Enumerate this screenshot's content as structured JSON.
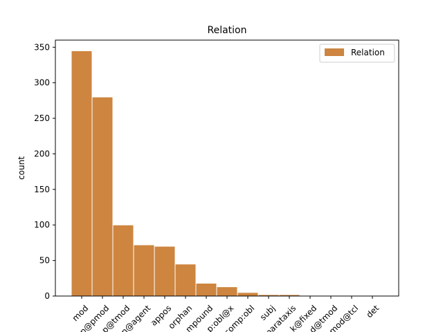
{
  "chart_data": {
    "type": "bar",
    "title": "Relation",
    "xlabel": "",
    "ylabel": "count",
    "ylim": [
      0,
      360
    ],
    "yticks": [
      0,
      50,
      100,
      150,
      200,
      250,
      300,
      350
    ],
    "grid": false,
    "legend_position": "top-right",
    "categories": [
      "mod",
      "comp@pmod",
      "comp@tmod",
      "comp@agent",
      "appos",
      "orphan",
      "compound",
      "comp:obl@x",
      "comp:obl",
      "subj",
      "parataxis",
      "flat@fixed",
      "mod@tmod",
      "mod@tcl",
      "det"
    ],
    "tick_labels": [
      "mod",
      "p@pmod",
      "p@tmod",
      "n@agent",
      "appos",
      "orphan",
      "mpound",
      "p:obl@x",
      "comp:obl",
      "subj",
      "parataxis",
      "k@fixed",
      "d@tmod",
      "mod@tcl",
      "det"
    ],
    "series": [
      {
        "name": "Relation",
        "color": "#cd853f",
        "values": [
          345,
          280,
          100,
          72,
          70,
          45,
          18,
          13,
          5,
          2,
          2,
          0,
          0,
          0,
          0
        ]
      }
    ]
  }
}
